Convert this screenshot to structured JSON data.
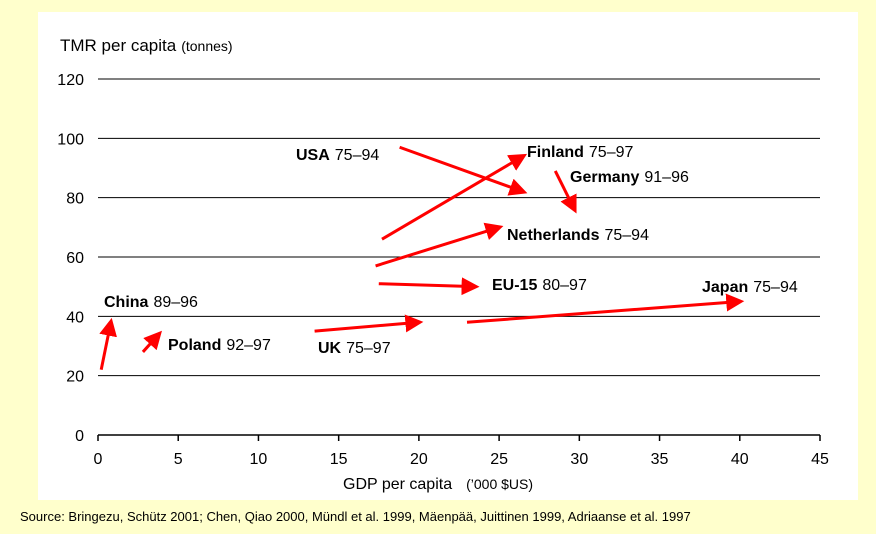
{
  "chart_data": {
    "type": "line",
    "ylabel": "TMR per capita",
    "ylabel_unit": "(tonnes)",
    "xlabel": "GDP per capita",
    "xlabel_unit": "(’000 $US)",
    "xlim": [
      0,
      45
    ],
    "ylim": [
      0,
      120
    ],
    "xticks": [
      0,
      5,
      10,
      15,
      20,
      25,
      30,
      35,
      40,
      45
    ],
    "yticks": [
      0,
      20,
      40,
      60,
      80,
      100,
      120
    ],
    "grid": "horizontal",
    "arrow_color": "#ff0000",
    "series": [
      {
        "name": "China",
        "period": "89–96",
        "x": [
          0.2,
          0.8
        ],
        "y": [
          22,
          38
        ]
      },
      {
        "name": "Poland",
        "period": "92–97",
        "x": [
          2.8,
          3.8
        ],
        "y": [
          28,
          34
        ]
      },
      {
        "name": "UK",
        "period": "75–97",
        "x": [
          13.5,
          20
        ],
        "y": [
          35,
          38
        ]
      },
      {
        "name": "USA",
        "period": "75–94",
        "x": [
          18.8,
          26.5
        ],
        "y": [
          97,
          82
        ]
      },
      {
        "name": "Finland",
        "period": "75–97",
        "x": [
          17.7,
          26.5
        ],
        "y": [
          66,
          94
        ]
      },
      {
        "name": "Germany",
        "period": "91–96",
        "x": [
          28.5,
          29.7
        ],
        "y": [
          89,
          76
        ]
      },
      {
        "name": "Netherlands",
        "period": "75–94",
        "x": [
          17.3,
          25
        ],
        "y": [
          57,
          70
        ]
      },
      {
        "name": "EU-15",
        "period": "80–97",
        "x": [
          17.5,
          23.5
        ],
        "y": [
          51,
          50
        ]
      },
      {
        "name": "Japan",
        "period": "75–94",
        "x": [
          23,
          40
        ],
        "y": [
          38,
          45
        ]
      }
    ]
  },
  "source": "Source: Bringezu, Schütz 2001; Chen, Qiao 2000, Mündl et al. 1999, Mäenpää, Juittinen 1999, Adriaanse et al. 1997"
}
